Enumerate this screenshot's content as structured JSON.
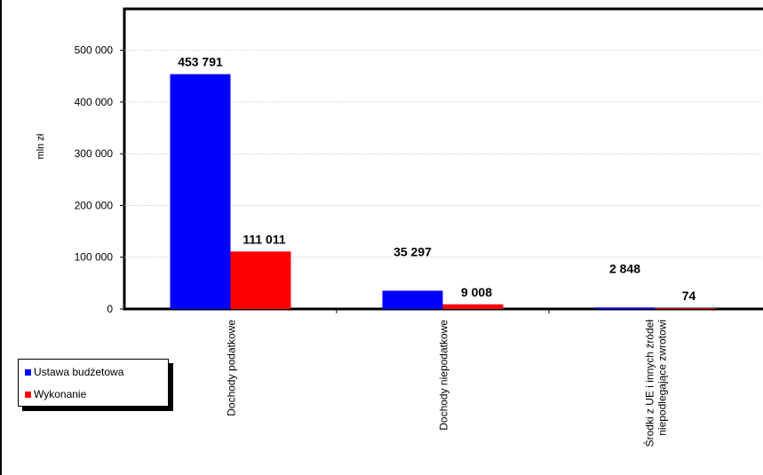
{
  "chart_data": {
    "type": "bar",
    "ylabel": "mln zł",
    "ylim": [
      0,
      580000
    ],
    "yticks": [
      0,
      100000,
      200000,
      300000,
      400000,
      500000
    ],
    "ytick_labels": [
      "0",
      "100 000",
      "200 000",
      "300 000",
      "400 000",
      "500 000"
    ],
    "categories": [
      "Dochody podatkowe",
      "Dochody niepodatkowe",
      "Środki z UE i innych źródeł niepodlegające zwrotowi"
    ],
    "category_labels": [
      [
        "Dochody podatkowe"
      ],
      [
        "Dochody niepodatkowe"
      ],
      [
        "Środki z UE i innych źródeł",
        "niepodlegające zwrotowi"
      ]
    ],
    "series": [
      {
        "name": "Ustawa budżetowa",
        "color": "#0000ff",
        "values": [
          453791,
          35297,
          2848
        ],
        "labels": [
          "453 791",
          "35 297",
          "2 848"
        ]
      },
      {
        "name": "Wykonanie",
        "color": "#ff0000",
        "values": [
          111011,
          9008,
          74
        ],
        "labels": [
          "111 011",
          "9 008",
          "74"
        ]
      }
    ],
    "grid": true,
    "legend_position": "bottom-left"
  }
}
